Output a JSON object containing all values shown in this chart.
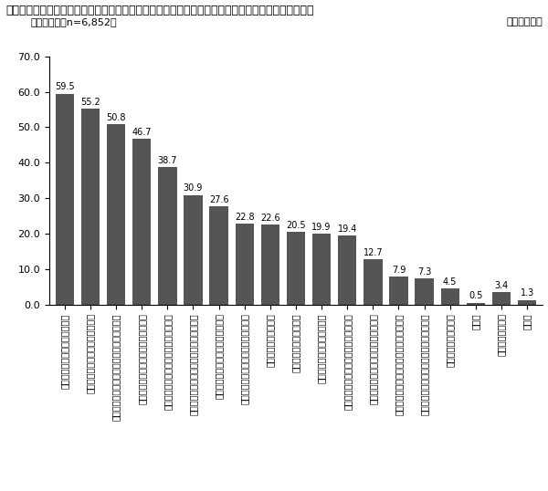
{
  "title_line1": "図表１－２　日常の業務のなかで、従業員に仕事を効果的に覚えてもらうために行っている取り組み",
  "title_line2": "（複数回答　n=6,852）",
  "unit_label": "（単位：％）",
  "values": [
    59.5,
    55.2,
    50.8,
    46.7,
    38.7,
    30.9,
    27.6,
    22.8,
    22.6,
    20.5,
    19.9,
    19.4,
    12.7,
    7.9,
    7.3,
    4.5,
    0.5,
    3.4,
    1.3
  ],
  "labels": [
    "とにかく実践させ、経験させる",
    "仕事のやり方を実際に見せている",
    "仕事について相談に乗ったり、助言している",
    "仕事を行う上での心構えを示している",
    "身につけるべき知識や能力を示している",
    "会社の理念や創業者の考え方を理解させる",
    "目指すべき仕事や役割を示している",
    "段階的に高度な仕事を割り振っている",
    "仕事の幅を広げている",
    "後輩の指導を任せている",
    "仕事を振り返る機会を与える",
    "業務に関するマニュアルを配布している",
    "個々の従業員の教育訓練の計画をくる",
    "会社の人材育成方針について説明している",
    "専任の職業人生について相談に乗っている",
    "今後の教育係を付ける",
    "その他",
    "何も行っていない",
    "無回答"
  ],
  "bar_color": "#555555",
  "ylim": [
    0,
    70.0
  ],
  "yticks": [
    0.0,
    10.0,
    20.0,
    30.0,
    40.0,
    50.0,
    60.0,
    70.0
  ],
  "value_fontsize": 7,
  "label_fontsize": 7,
  "title_fontsize": 9,
  "subtitle_fontsize": 8
}
